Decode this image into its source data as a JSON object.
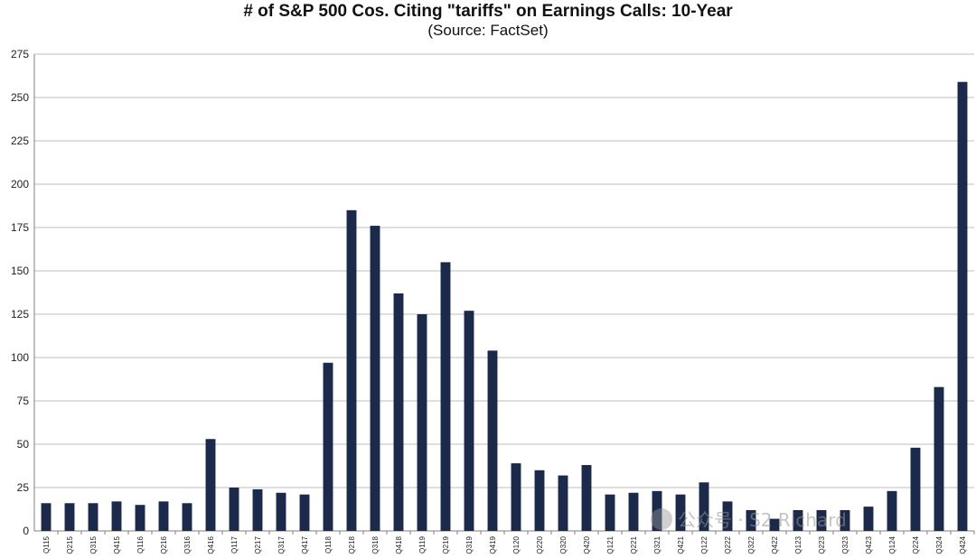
{
  "chart_data": {
    "type": "bar",
    "title": "# of S&P 500 Cos. Citing \"tariffs\" on Earnings Calls: 10-Year",
    "subtitle": "(Source: FactSet)",
    "xlabel": "",
    "ylabel": "",
    "ylim": [
      0,
      275
    ],
    "yticks": [
      0,
      25,
      50,
      75,
      100,
      125,
      150,
      175,
      200,
      225,
      250,
      275
    ],
    "grid": true,
    "bar_color": "#1b2a4a",
    "categories": [
      "Q115",
      "Q215",
      "Q315",
      "Q415",
      "Q116",
      "Q216",
      "Q316",
      "Q416",
      "Q117",
      "Q217",
      "Q317",
      "Q417",
      "Q118",
      "Q218",
      "Q318",
      "Q418",
      "Q119",
      "Q219",
      "Q319",
      "Q419",
      "Q120",
      "Q220",
      "Q320",
      "Q420",
      "Q121",
      "Q221",
      "Q321",
      "Q421",
      "Q122",
      "Q222",
      "Q322",
      "Q422",
      "Q123",
      "Q223",
      "Q323",
      "Q423",
      "Q124",
      "Q224",
      "Q324",
      "Q424"
    ],
    "values": [
      16,
      16,
      16,
      17,
      15,
      17,
      16,
      53,
      25,
      24,
      22,
      21,
      97,
      185,
      176,
      137,
      125,
      155,
      127,
      104,
      39,
      35,
      32,
      38,
      21,
      22,
      23,
      21,
      28,
      17,
      12,
      7,
      12,
      12,
      12,
      14,
      23,
      48,
      83,
      259
    ]
  },
  "watermark": {
    "text": "公众号 · S2 Richard"
  }
}
